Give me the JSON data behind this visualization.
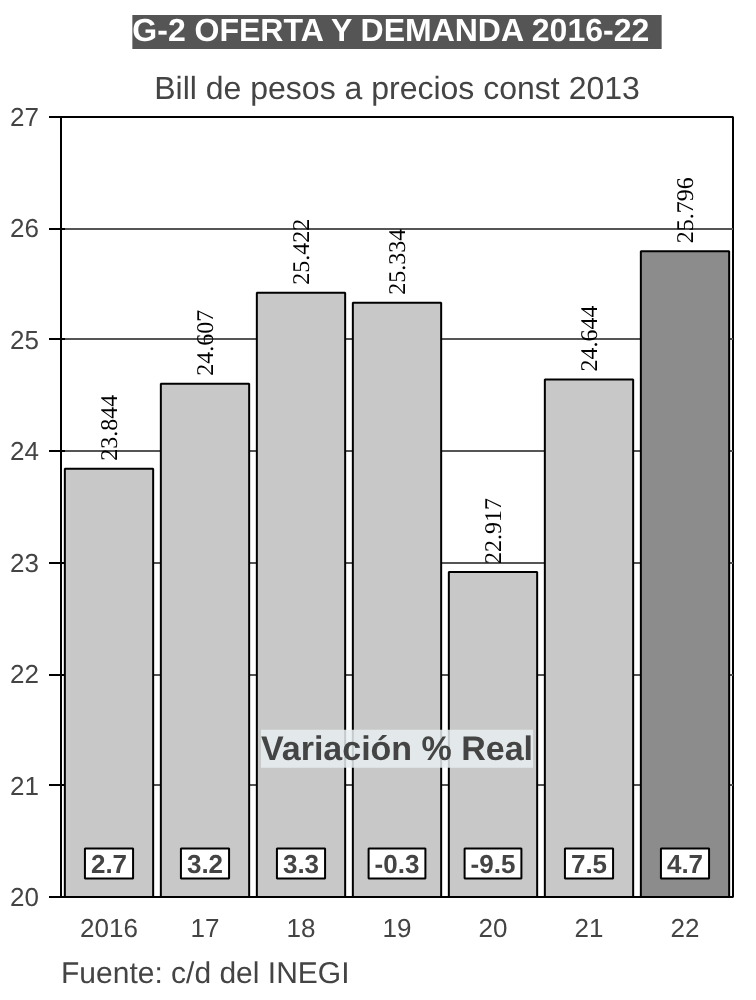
{
  "chart_data": {
    "type": "bar",
    "title": "G-2  OFERTA Y DEMANDA 2016-22",
    "subtitle": "Bill de pesos a precios const 2013",
    "categories": [
      "2016",
      "17",
      "18",
      "19",
      "20",
      "21",
      "22"
    ],
    "values": [
      23.844,
      24.607,
      25.422,
      25.334,
      22.917,
      24.644,
      25.796
    ],
    "colors": [
      "#c8c8c8",
      "#c8c8c8",
      "#c8c8c8",
      "#c8c8c8",
      "#c8c8c8",
      "#c8c8c8",
      "#8c8c8c"
    ],
    "value_labels": [
      "23.844",
      "24.607",
      "25.422",
      "25.334",
      "22.917",
      "24.644",
      "25.796"
    ],
    "ylim": [
      20,
      27
    ],
    "yticks": [
      20,
      21,
      22,
      23,
      24,
      25,
      26,
      27
    ],
    "grid": "y",
    "annotations": [
      "Variación % Real",
      {
        "text": "2.7",
        "x": "2016",
        "y": 20.3
      },
      {
        "text": "3.2",
        "x": "17",
        "y": 20.3
      },
      {
        "text": "3.3",
        "x": "18",
        "y": 20.3
      },
      {
        "text": "-0.3",
        "x": "19",
        "y": 20.3
      },
      {
        "text": "-9.5",
        "x": "20",
        "y": 20.3
      },
      {
        "text": "7.5",
        "x": "21",
        "y": 20.3
      },
      {
        "text": "4.7",
        "x": "22",
        "y": 20.3
      },
      "Fuente: c/d del INEGI"
    ]
  }
}
